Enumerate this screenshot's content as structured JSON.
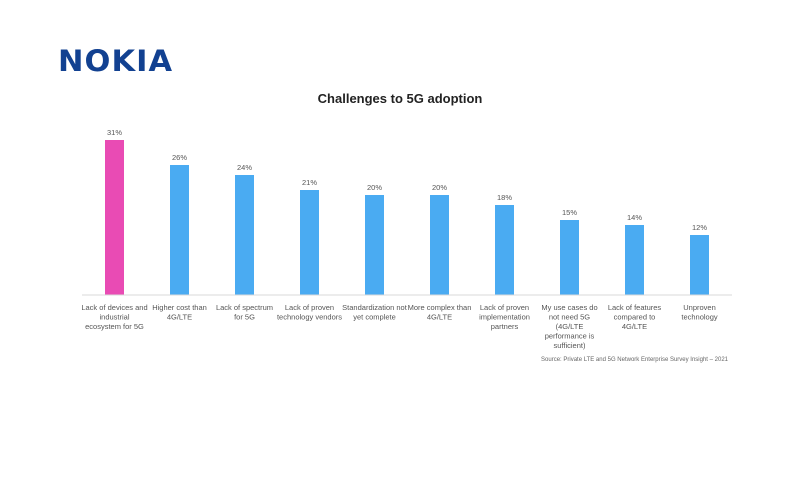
{
  "brand": {
    "logo_text": "NOKIA",
    "logo_color": "#124191"
  },
  "chart_data": {
    "type": "bar",
    "title": "Challenges to 5G adoption",
    "categories": [
      "Lack of devices and industrial ecosystem for 5G",
      "Higher cost than 4G/LTE",
      "Lack of spectrum for 5G",
      "Lack of proven technology vendors",
      "Standardization not yet complete",
      "More complex than 4G/LTE",
      "Lack of proven implementation partners",
      "My use cases do not need 5G (4G/LTE performance is sufficient)",
      "Lack of features compared to 4G/LTE",
      "Unproven technology"
    ],
    "category_lines": [
      [
        "Lack of devices and",
        "industrial",
        "ecosystem for 5G"
      ],
      [
        "Higher cost than",
        "4G/LTE"
      ],
      [
        "Lack of spectrum",
        "for 5G"
      ],
      [
        "Lack of proven",
        "technology vendors"
      ],
      [
        "Standardization not",
        "yet complete"
      ],
      [
        "More complex than",
        "4G/LTE"
      ],
      [
        "Lack of proven",
        "implementation",
        "partners"
      ],
      [
        "My use cases do",
        "not need 5G",
        "(4G/LTE",
        "performance is",
        "sufficient)"
      ],
      [
        "Lack of features",
        "compared to",
        "4G/LTE"
      ],
      [
        "Unproven",
        "technology"
      ]
    ],
    "values": [
      31,
      26,
      24,
      21,
      20,
      20,
      18,
      15,
      14,
      12
    ],
    "value_labels": [
      "31%",
      "26%",
      "24%",
      "21%",
      "20%",
      "20%",
      "18%",
      "15%",
      "14%",
      "12%"
    ],
    "unit": "%",
    "ylim": [
      0,
      31
    ],
    "grid": false,
    "highlight_index": 0,
    "colors": {
      "highlight": "#E94BB4",
      "bar": "#4AABF2",
      "axis": "#D9D9D9"
    }
  },
  "source": "Source: Private LTE and 5G Network Enterprise Survey Insight – 2021"
}
